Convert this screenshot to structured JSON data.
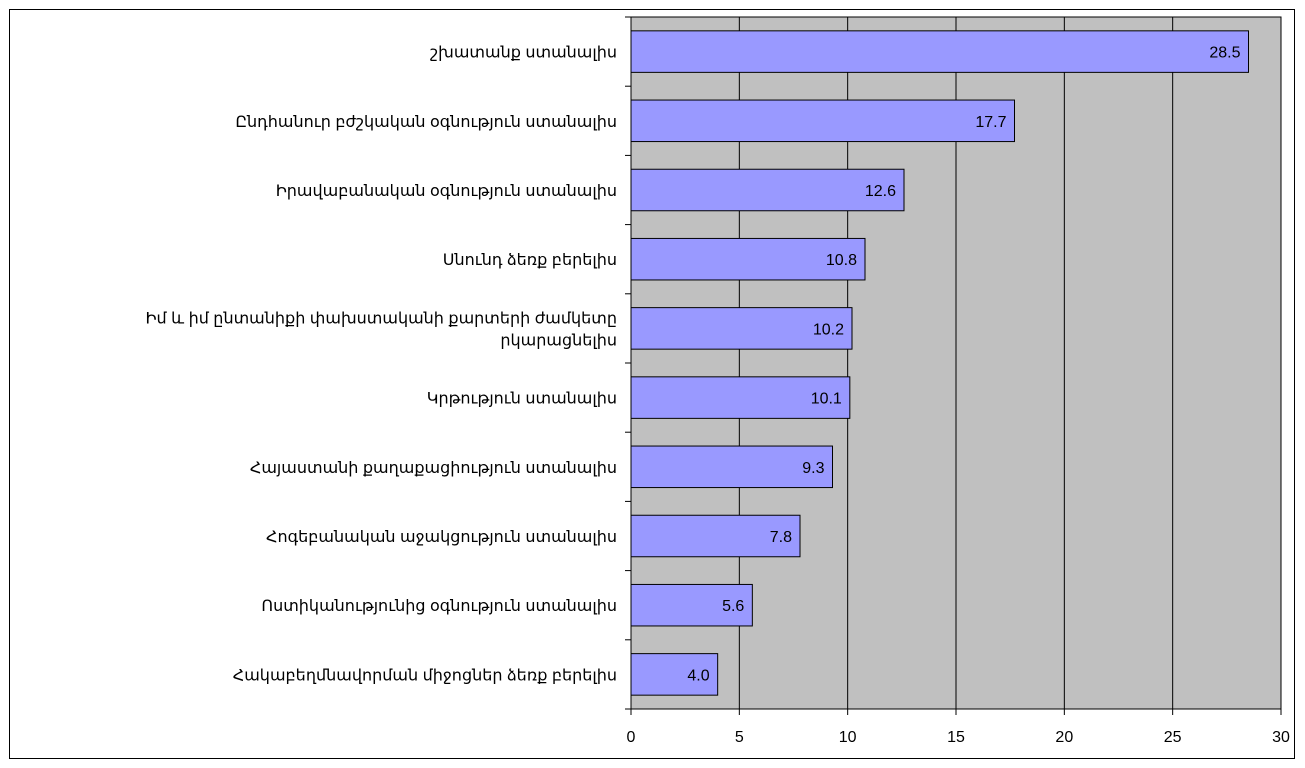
{
  "chart_data": {
    "type": "bar",
    "orientation": "horizontal",
    "title": "",
    "xlabel": "",
    "ylabel": "",
    "xlim": [
      0,
      30
    ],
    "x_ticks": [
      "0",
      "5",
      "10",
      "15",
      "20",
      "25",
      "30"
    ],
    "grid": true,
    "legend": "none",
    "categories": [
      [
        "շխատանք ստանալիս"
      ],
      [
        "Ընդհանուր բժշկական օգնություն ստանալիս"
      ],
      [
        "Իրավաբանական օգնություն ստանալիս"
      ],
      [
        "Սնունդ ձեռք բերելիս"
      ],
      [
        "Իմ և իմ ընտանիքի փախստականի քարտերի ժամկետը",
        "րկարացնելիս"
      ],
      [
        "Կրթություն ստանալիս"
      ],
      [
        "Հայաստանի քաղաքացիություն ստանալիս"
      ],
      [
        "Հոգեբանական աջակցություն ստանալիս"
      ],
      [
        "Ոստիկանությունից օգնություն ստանալիս"
      ],
      [
        "Հակաբեղմնավորման միջոցներ ձեռք բերելիս"
      ]
    ],
    "values": [
      28.5,
      17.7,
      12.6,
      10.8,
      10.2,
      10.1,
      9.3,
      7.8,
      5.6,
      4.0
    ],
    "value_labels": [
      "28.5",
      "17.7",
      "12.6",
      "10.8",
      "10.2",
      "10.1",
      "9.3",
      "7.8",
      "5.6",
      "4.0"
    ],
    "colors": {
      "bar_fill": "#9999ff",
      "plot_background": "#c0c0c0",
      "gridline": "#000000",
      "bar_border": "#000000"
    }
  }
}
